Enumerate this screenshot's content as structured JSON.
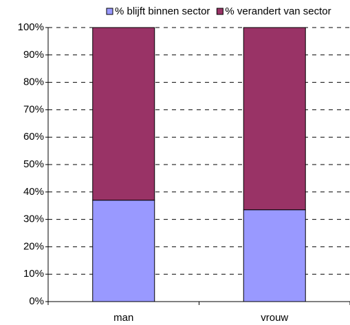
{
  "chart_data": {
    "type": "stacked_bar",
    "categories": [
      "man",
      "vrouw"
    ],
    "series": [
      {
        "name": "% blijft binnen sector",
        "color": "#9999ff",
        "values": [
          37,
          33.5
        ]
      },
      {
        "name": "% verandert van sector",
        "color": "#993366",
        "values": [
          63,
          66.5
        ]
      }
    ],
    "ylim": [
      0,
      100
    ],
    "yticks": [
      {
        "value": 0,
        "label": "0%"
      },
      {
        "value": 10,
        "label": "10%"
      },
      {
        "value": 20,
        "label": "20%"
      },
      {
        "value": 30,
        "label": "30%"
      },
      {
        "value": 40,
        "label": "40%"
      },
      {
        "value": 50,
        "label": "50%"
      },
      {
        "value": 60,
        "label": "60%"
      },
      {
        "value": 70,
        "label": "70%"
      },
      {
        "value": 80,
        "label": "80%"
      },
      {
        "value": 90,
        "label": "90%"
      },
      {
        "value": 100,
        "label": "100%"
      }
    ],
    "grid": true,
    "legend": "top"
  }
}
